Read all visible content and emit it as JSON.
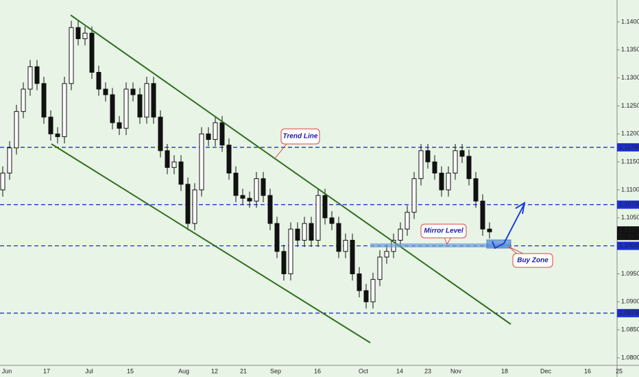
{
  "chart_data": {
    "type": "candlestick",
    "open": [
      1.11,
      1.113,
      1.1175,
      1.124,
      1.128,
      1.132,
      1.129,
      1.123,
      1.12,
      1.1195,
      1.129,
      1.139,
      1.137,
      1.138,
      1.131,
      1.128,
      1.127,
      1.122,
      1.121,
      1.128,
      1.127,
      1.123,
      1.129,
      1.123,
      1.117,
      1.114,
      1.115,
      1.111,
      1.104,
      1.11,
      1.12,
      1.119,
      1.122,
      1.118,
      1.113,
      1.109,
      1.1085,
      1.108,
      1.112,
      1.109,
      1.104,
      1.099,
      1.095,
      1.103,
      1.101,
      1.104,
      1.101,
      1.109,
      1.105,
      1.104,
      1.099,
      1.101,
      1.095,
      1.092,
      1.09,
      1.094,
      1.098,
      1.099,
      1.101,
      1.103,
      1.106,
      1.112,
      1.117,
      1.115,
      1.113,
      1.11,
      1.113,
      1.117,
      1.116,
      1.112,
      1.108,
      1.103
    ],
    "high": [
      1.1142,
      1.1187,
      1.1252,
      1.1292,
      1.1332,
      1.1332,
      1.1302,
      1.1242,
      1.1212,
      1.1302,
      1.1402,
      1.1402,
      1.1392,
      1.1392,
      1.1322,
      1.1292,
      1.1282,
      1.1232,
      1.1292,
      1.1292,
      1.1282,
      1.1302,
      1.1302,
      1.1242,
      1.1182,
      1.1162,
      1.1162,
      1.1122,
      1.1112,
      1.1212,
      1.1212,
      1.1232,
      1.1232,
      1.1192,
      1.1142,
      1.1102,
      1.1097,
      1.1132,
      1.1132,
      1.1102,
      1.1052,
      1.1002,
      1.1042,
      1.1042,
      1.1052,
      1.1052,
      1.1102,
      1.1102,
      1.1062,
      1.1052,
      1.1022,
      1.1022,
      1.0962,
      1.0932,
      1.0952,
      1.0992,
      1.1002,
      1.1022,
      1.1042,
      1.1072,
      1.1132,
      1.1182,
      1.1182,
      1.1162,
      1.1142,
      1.1142,
      1.1182,
      1.1182,
      1.1172,
      1.1132,
      1.1092,
      1.1042
    ],
    "low": [
      1.1088,
      1.1118,
      1.1163,
      1.1228,
      1.1268,
      1.1278,
      1.1218,
      1.1188,
      1.1183,
      1.1183,
      1.1278,
      1.1358,
      1.1358,
      1.1298,
      1.1268,
      1.1258,
      1.1208,
      1.1198,
      1.1198,
      1.1258,
      1.1218,
      1.1218,
      1.1218,
      1.1158,
      1.1128,
      1.1128,
      1.1098,
      1.1028,
      1.1028,
      1.1088,
      1.1178,
      1.1178,
      1.1168,
      1.1118,
      1.1078,
      1.1073,
      1.1068,
      1.1068,
      1.1078,
      1.1028,
      1.0978,
      1.0938,
      1.0938,
      1.0998,
      1.0998,
      1.0998,
      1.0998,
      1.1038,
      1.1028,
      1.0978,
      1.0978,
      1.0938,
      1.0908,
      1.0888,
      1.0888,
      1.0928,
      1.0968,
      1.0978,
      1.0998,
      1.1018,
      1.1048,
      1.1108,
      1.1138,
      1.1118,
      1.1088,
      1.1088,
      1.1118,
      1.1148,
      1.1108,
      1.1068,
      1.1018,
      1.1013
    ],
    "close": [
      1.113,
      1.1175,
      1.124,
      1.128,
      1.132,
      1.129,
      1.123,
      1.12,
      1.1195,
      1.129,
      1.139,
      1.137,
      1.138,
      1.131,
      1.128,
      1.127,
      1.122,
      1.121,
      1.128,
      1.127,
      1.123,
      1.129,
      1.123,
      1.117,
      1.114,
      1.115,
      1.111,
      1.104,
      1.11,
      1.12,
      1.119,
      1.122,
      1.118,
      1.113,
      1.109,
      1.1085,
      1.108,
      1.112,
      1.109,
      1.104,
      1.099,
      1.095,
      1.103,
      1.101,
      1.104,
      1.101,
      1.109,
      1.105,
      1.104,
      1.099,
      1.101,
      1.095,
      1.092,
      1.09,
      1.094,
      1.098,
      1.099,
      1.101,
      1.103,
      1.106,
      1.112,
      1.117,
      1.115,
      1.113,
      1.11,
      1.113,
      1.117,
      1.116,
      1.112,
      1.108,
      1.103,
      1.1025
    ],
    "ylim": [
      1.07865,
      1.14392
    ],
    "yticks": [
      {
        "value": 1.08,
        "label": "1.08000"
      },
      {
        "value": 1.085,
        "label": "1.08500"
      },
      {
        "value": 1.09,
        "label": "1.09000"
      },
      {
        "value": 1.095,
        "label": "1.09500"
      },
      {
        "value": 1.1,
        "label": "1.10000"
      },
      {
        "value": 1.105,
        "label": "1.10500"
      },
      {
        "value": 1.11,
        "label": "1.11000"
      },
      {
        "value": 1.115,
        "label": "1.11500"
      },
      {
        "value": 1.12,
        "label": "1.12000"
      },
      {
        "value": 1.125,
        "label": "1.12500"
      },
      {
        "value": 1.13,
        "label": "1.13000"
      },
      {
        "value": 1.135,
        "label": "1.13500"
      },
      {
        "value": 1.14,
        "label": "1.14000"
      }
    ],
    "levels": [
      {
        "value": 1.1176,
        "label": "1.11760"
      },
      {
        "value": 1.10736,
        "label": "1.10736"
      },
      {
        "value": 1.1,
        "label": "1.10000"
      },
      {
        "value": 1.08798,
        "label": "1.08798"
      }
    ],
    "last_price": {
      "value": 1.10275,
      "label": "1.10275",
      "time": "11:36:23"
    },
    "xlabels": [
      "Jun",
      "17",
      "Jul",
      "15",
      "Aug",
      "12",
      "21",
      "Sep",
      "16",
      "Oct",
      "14",
      "23",
      "Nov",
      "18",
      "Dec",
      "16",
      "25"
    ],
    "annotations": [
      "Trend Line",
      "Mirror Level",
      "Buy Zone"
    ]
  }
}
